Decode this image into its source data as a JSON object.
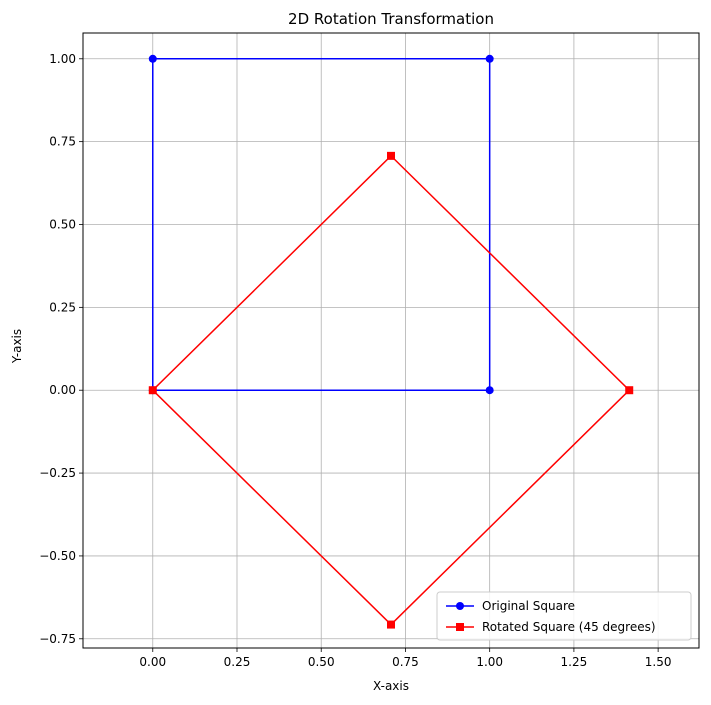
{
  "chart_data": {
    "type": "line",
    "title": "2D Rotation Transformation",
    "xlabel": "X-axis",
    "ylabel": "Y-axis",
    "xlim": [
      -0.2071,
      1.6213
    ],
    "ylim": [
      -0.7778,
      1.0778
    ],
    "xticks": [
      0.0,
      0.25,
      0.5,
      0.75,
      1.0,
      1.25,
      1.5
    ],
    "xtick_labels": [
      "0.00",
      "0.25",
      "0.50",
      "0.75",
      "1.00",
      "1.25",
      "1.50"
    ],
    "yticks": [
      -0.75,
      -0.5,
      -0.25,
      0.0,
      0.25,
      0.5,
      0.75,
      1.0
    ],
    "ytick_labels": [
      "−0.75",
      "−0.50",
      "−0.25",
      "0.00",
      "0.25",
      "0.50",
      "0.75",
      "1.00"
    ],
    "grid": true,
    "legend_position": "lower-right",
    "series": [
      {
        "name": "Original Square",
        "color": "#0000ff",
        "marker": "circle",
        "x": [
          0,
          1,
          1,
          0,
          0
        ],
        "y": [
          0,
          0,
          1,
          1,
          0
        ]
      },
      {
        "name": "Rotated Square (45 degrees)",
        "color": "#ff0000",
        "marker": "square",
        "x": [
          0,
          0.7071,
          1.4142,
          0.7071,
          0
        ],
        "y": [
          0,
          0.7071,
          0,
          -0.7071,
          0
        ]
      }
    ]
  }
}
